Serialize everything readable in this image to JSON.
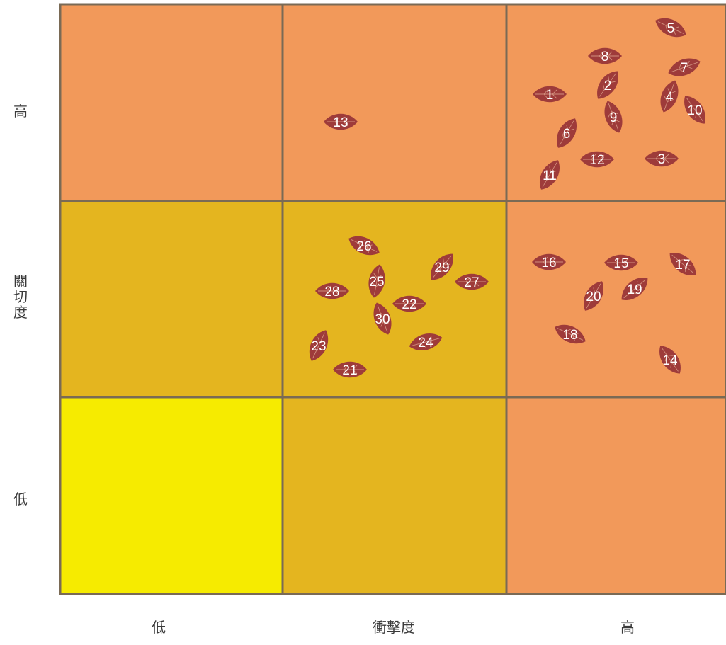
{
  "y_axis": {
    "title": "關切度",
    "high": "高",
    "low": "低"
  },
  "x_axis": {
    "title": "衝擊度",
    "low": "低",
    "high": "高"
  },
  "colors": {
    "high_zone": "#F2995A",
    "mid_zone": "#E4B51F",
    "low_zone": "#F6EB00",
    "border": "#7A6A55",
    "leaf": "#9E3B3A",
    "leaf_vein": "#E7B49A",
    "label": "#ffffff"
  },
  "grid": {
    "rows": [
      "高",
      "關切度",
      "低"
    ],
    "cols": [
      "低",
      "衝擊度",
      "高"
    ],
    "cells": [
      [
        "high",
        "high",
        "high"
      ],
      [
        "mid",
        "mid",
        "high"
      ],
      [
        "low",
        "mid",
        "high"
      ]
    ]
  },
  "chart_data": {
    "type": "scatter",
    "title": "",
    "xlabel": "衝擊度",
    "ylabel": "關切度",
    "x_categories": [
      "低",
      "",
      "高"
    ],
    "y_categories": [
      "低",
      "",
      "高"
    ],
    "points": [
      {
        "label": "1",
        "col": "高",
        "row": "高"
      },
      {
        "label": "2",
        "col": "高",
        "row": "高"
      },
      {
        "label": "3",
        "col": "高",
        "row": "高"
      },
      {
        "label": "4",
        "col": "高",
        "row": "高"
      },
      {
        "label": "5",
        "col": "高",
        "row": "高"
      },
      {
        "label": "6",
        "col": "高",
        "row": "高"
      },
      {
        "label": "7",
        "col": "高",
        "row": "高"
      },
      {
        "label": "8",
        "col": "高",
        "row": "高"
      },
      {
        "label": "9",
        "col": "高",
        "row": "高"
      },
      {
        "label": "10",
        "col": "高",
        "row": "高"
      },
      {
        "label": "11",
        "col": "高",
        "row": "高"
      },
      {
        "label": "12",
        "col": "高",
        "row": "高"
      },
      {
        "label": "13",
        "col": "衝擊度",
        "row": "高"
      },
      {
        "label": "14",
        "col": "高",
        "row": "關切度"
      },
      {
        "label": "15",
        "col": "高",
        "row": "關切度"
      },
      {
        "label": "16",
        "col": "高",
        "row": "關切度"
      },
      {
        "label": "17",
        "col": "高",
        "row": "關切度"
      },
      {
        "label": "18",
        "col": "高",
        "row": "關切度"
      },
      {
        "label": "19",
        "col": "高",
        "row": "關切度"
      },
      {
        "label": "20",
        "col": "高",
        "row": "關切度"
      },
      {
        "label": "21",
        "col": "衝擊度",
        "row": "關切度"
      },
      {
        "label": "22",
        "col": "衝擊度",
        "row": "關切度"
      },
      {
        "label": "23",
        "col": "衝擊度",
        "row": "關切度"
      },
      {
        "label": "24",
        "col": "衝擊度",
        "row": "關切度"
      },
      {
        "label": "25",
        "col": "衝擊度",
        "row": "關切度"
      },
      {
        "label": "26",
        "col": "衝擊度",
        "row": "關切度"
      },
      {
        "label": "27",
        "col": "衝擊度",
        "row": "關切度"
      },
      {
        "label": "28",
        "col": "衝擊度",
        "row": "關切度"
      },
      {
        "label": "29",
        "col": "衝擊度",
        "row": "關切度"
      },
      {
        "label": "30",
        "col": "衝擊度",
        "row": "關切度"
      }
    ]
  }
}
